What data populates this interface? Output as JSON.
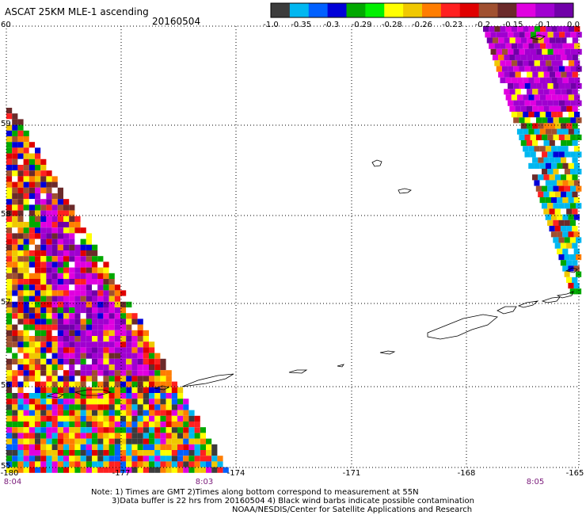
{
  "header": {
    "title": "ASCAT 25KM MLE-1 ascending",
    "date": "20160504"
  },
  "color_scale": {
    "labels": [
      "-1.0",
      "-0.35",
      "-0.3",
      "-0.29",
      "-0.28",
      "-0.26",
      "-0.23",
      "-0.2",
      "-0.15",
      "-0.1",
      "0.0"
    ],
    "colors": [
      "#3c3c3c",
      "#00b7f0",
      "#0060ff",
      "#0000d8",
      "#00a800",
      "#00f000",
      "#ffff00",
      "#f0c800",
      "#ff7d00",
      "#ff2020",
      "#e00000",
      "#a05030",
      "#6b2a2a",
      "#e000e0",
      "#a000d0",
      "#7000a8"
    ]
  },
  "axes": {
    "lat_labels": [
      "60",
      "59",
      "58",
      "57",
      "56",
      "55"
    ],
    "lon_labels": [
      "-180",
      "-177",
      "-174",
      "-171",
      "-168",
      "-165"
    ],
    "time_labels": [
      "8:04",
      "8:03",
      "8:05"
    ]
  },
  "notes": {
    "line1": "Note: 1) Times are GMT 2)Times along bottom correspond to measurement at 55N",
    "line2": "3)Data buffer is 22 hrs from 20160504 4) Black wind barbs indicate possible contamination",
    "line3": "NOAA/NESDIS/Center for Satellite Applications and Research"
  }
}
